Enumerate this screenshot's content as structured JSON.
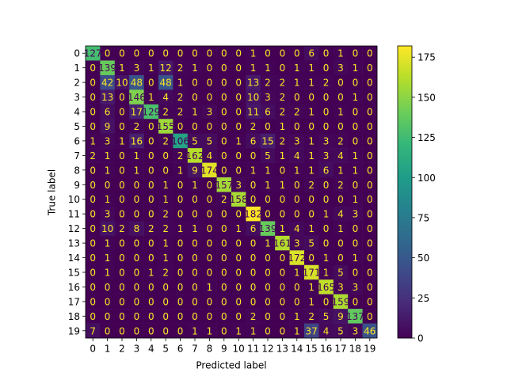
{
  "chart_data": {
    "type": "heatmap",
    "xlabel": "Predicted label",
    "ylabel": "True label",
    "x_categories": [
      "0",
      "1",
      "2",
      "3",
      "4",
      "5",
      "6",
      "7",
      "8",
      "9",
      "10",
      "11",
      "12",
      "13",
      "14",
      "15",
      "16",
      "17",
      "18",
      "19"
    ],
    "y_categories": [
      "0",
      "1",
      "2",
      "3",
      "4",
      "5",
      "6",
      "7",
      "8",
      "9",
      "10",
      "11",
      "12",
      "13",
      "14",
      "15",
      "16",
      "17",
      "18",
      "19"
    ],
    "values": [
      [
        127,
        0,
        0,
        0,
        0,
        0,
        0,
        0,
        0,
        0,
        0,
        1,
        0,
        0,
        0,
        6,
        0,
        1,
        0,
        0
      ],
      [
        0,
        139,
        1,
        3,
        1,
        12,
        2,
        1,
        0,
        0,
        0,
        1,
        1,
        0,
        1,
        1,
        0,
        3,
        1,
        0
      ],
      [
        0,
        42,
        10,
        48,
        0,
        48,
        1,
        0,
        0,
        0,
        0,
        13,
        2,
        2,
        1,
        1,
        2,
        0,
        0,
        0
      ],
      [
        0,
        13,
        0,
        146,
        1,
        4,
        2,
        0,
        0,
        0,
        0,
        10,
        3,
        2,
        0,
        0,
        0,
        0,
        1,
        0
      ],
      [
        0,
        6,
        0,
        17,
        129,
        2,
        2,
        1,
        3,
        0,
        0,
        11,
        6,
        2,
        2,
        1,
        0,
        1,
        0,
        0
      ],
      [
        0,
        9,
        0,
        2,
        0,
        155,
        0,
        0,
        0,
        0,
        0,
        2,
        0,
        1,
        0,
        0,
        0,
        0,
        0,
        0
      ],
      [
        1,
        3,
        1,
        16,
        0,
        2,
        106,
        5,
        5,
        0,
        1,
        6,
        15,
        2,
        3,
        1,
        3,
        2,
        0,
        0
      ],
      [
        2,
        1,
        0,
        1,
        0,
        0,
        2,
        162,
        4,
        0,
        0,
        0,
        5,
        1,
        4,
        1,
        3,
        4,
        1,
        0
      ],
      [
        0,
        1,
        0,
        1,
        0,
        0,
        1,
        9,
        174,
        0,
        0,
        1,
        1,
        0,
        1,
        1,
        6,
        1,
        1,
        0
      ],
      [
        0,
        0,
        0,
        0,
        0,
        1,
        0,
        1,
        0,
        157,
        3,
        0,
        1,
        1,
        0,
        2,
        0,
        2,
        0,
        0
      ],
      [
        0,
        1,
        0,
        0,
        0,
        1,
        0,
        0,
        0,
        2,
        158,
        0,
        0,
        0,
        0,
        0,
        0,
        0,
        1,
        0
      ],
      [
        0,
        3,
        0,
        0,
        0,
        2,
        0,
        0,
        0,
        0,
        0,
        182,
        0,
        0,
        0,
        0,
        1,
        4,
        3,
        0
      ],
      [
        0,
        10,
        2,
        8,
        2,
        2,
        1,
        1,
        0,
        0,
        1,
        6,
        139,
        1,
        4,
        1,
        0,
        1,
        0,
        0
      ],
      [
        0,
        1,
        0,
        0,
        0,
        1,
        0,
        0,
        0,
        0,
        0,
        0,
        1,
        161,
        3,
        5,
        0,
        0,
        0,
        0
      ],
      [
        0,
        1,
        0,
        0,
        0,
        1,
        0,
        0,
        0,
        0,
        0,
        0,
        0,
        0,
        172,
        0,
        1,
        0,
        1,
        0
      ],
      [
        0,
        1,
        0,
        0,
        1,
        2,
        0,
        0,
        0,
        0,
        0,
        0,
        0,
        0,
        1,
        171,
        1,
        5,
        0,
        0
      ],
      [
        0,
        0,
        0,
        0,
        0,
        0,
        0,
        0,
        1,
        0,
        0,
        0,
        0,
        0,
        0,
        1,
        165,
        3,
        3,
        0
      ],
      [
        0,
        0,
        0,
        0,
        0,
        0,
        0,
        0,
        0,
        0,
        0,
        0,
        0,
        0,
        0,
        1,
        0,
        159,
        0,
        0
      ],
      [
        0,
        0,
        0,
        0,
        0,
        0,
        0,
        0,
        0,
        0,
        0,
        2,
        0,
        0,
        1,
        2,
        5,
        9,
        137,
        0
      ],
      [
        7,
        0,
        0,
        0,
        0,
        0,
        0,
        1,
        1,
        0,
        1,
        1,
        0,
        0,
        1,
        37,
        4,
        5,
        3,
        46
      ]
    ],
    "cmap": "viridis",
    "clim": [
      0,
      182
    ],
    "cticks": [
      0,
      25,
      50,
      75,
      100,
      125,
      150,
      175
    ]
  }
}
